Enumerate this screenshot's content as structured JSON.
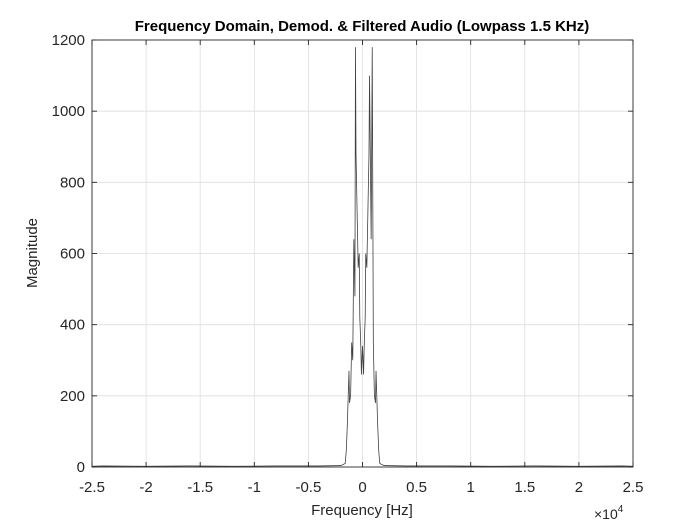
{
  "chart_data": {
    "type": "line",
    "title": "Frequency Domain, Demod. & Filtered Audio (Lowpass 1.5 KHz)",
    "xlabel": "Frequency [Hz]",
    "ylabel": "Magnitude",
    "x_exponent_label": "×10",
    "x_exponent_power": "4",
    "xlim": [
      -25000,
      25000
    ],
    "ylim": [
      0,
      1200
    ],
    "x_ticks": [
      -25000,
      -20000,
      -15000,
      -10000,
      -5000,
      0,
      5000,
      10000,
      15000,
      20000,
      25000
    ],
    "x_tick_labels": [
      "-2.5",
      "-2",
      "-1.5",
      "-1",
      "-0.5",
      "0",
      "0.5",
      "1",
      "1.5",
      "2",
      "2.5"
    ],
    "y_ticks": [
      0,
      200,
      400,
      600,
      800,
      1000,
      1200
    ],
    "y_tick_labels": [
      "0",
      "200",
      "400",
      "600",
      "800",
      "1000",
      "1200"
    ],
    "grid": true,
    "series": [
      {
        "color": "#404040",
        "x": [
          -25000,
          -24000,
          -20000,
          -16000,
          -12000,
          -8000,
          -4000,
          -2000,
          -1600,
          -1500,
          -1400,
          -1300,
          -1250,
          -1200,
          -1100,
          -1000,
          -900,
          -800,
          -700,
          -650,
          -600,
          -500,
          -400,
          -300,
          -250,
          -200,
          -150,
          -100,
          -50,
          0,
          50,
          100,
          150,
          200,
          250,
          300,
          400,
          500,
          600,
          650,
          700,
          800,
          900,
          1000,
          1100,
          1200,
          1250,
          1300,
          1400,
          1500,
          1600,
          2000,
          4000,
          8000,
          12000,
          16000,
          20000,
          24000,
          25000
        ],
        "y": [
          2,
          3,
          2,
          3,
          2,
          3,
          3,
          4,
          10,
          45,
          120,
          220,
          270,
          180,
          200,
          350,
          300,
          640,
          480,
          1180,
          880,
          720,
          560,
          600,
          420,
          380,
          330,
          260,
          300,
          340,
          300,
          260,
          330,
          380,
          420,
          600,
          560,
          720,
          880,
          1100,
          950,
          640,
          1180,
          350,
          200,
          180,
          270,
          220,
          120,
          45,
          10,
          4,
          3,
          3,
          2,
          3,
          2,
          3,
          2
        ]
      }
    ]
  }
}
